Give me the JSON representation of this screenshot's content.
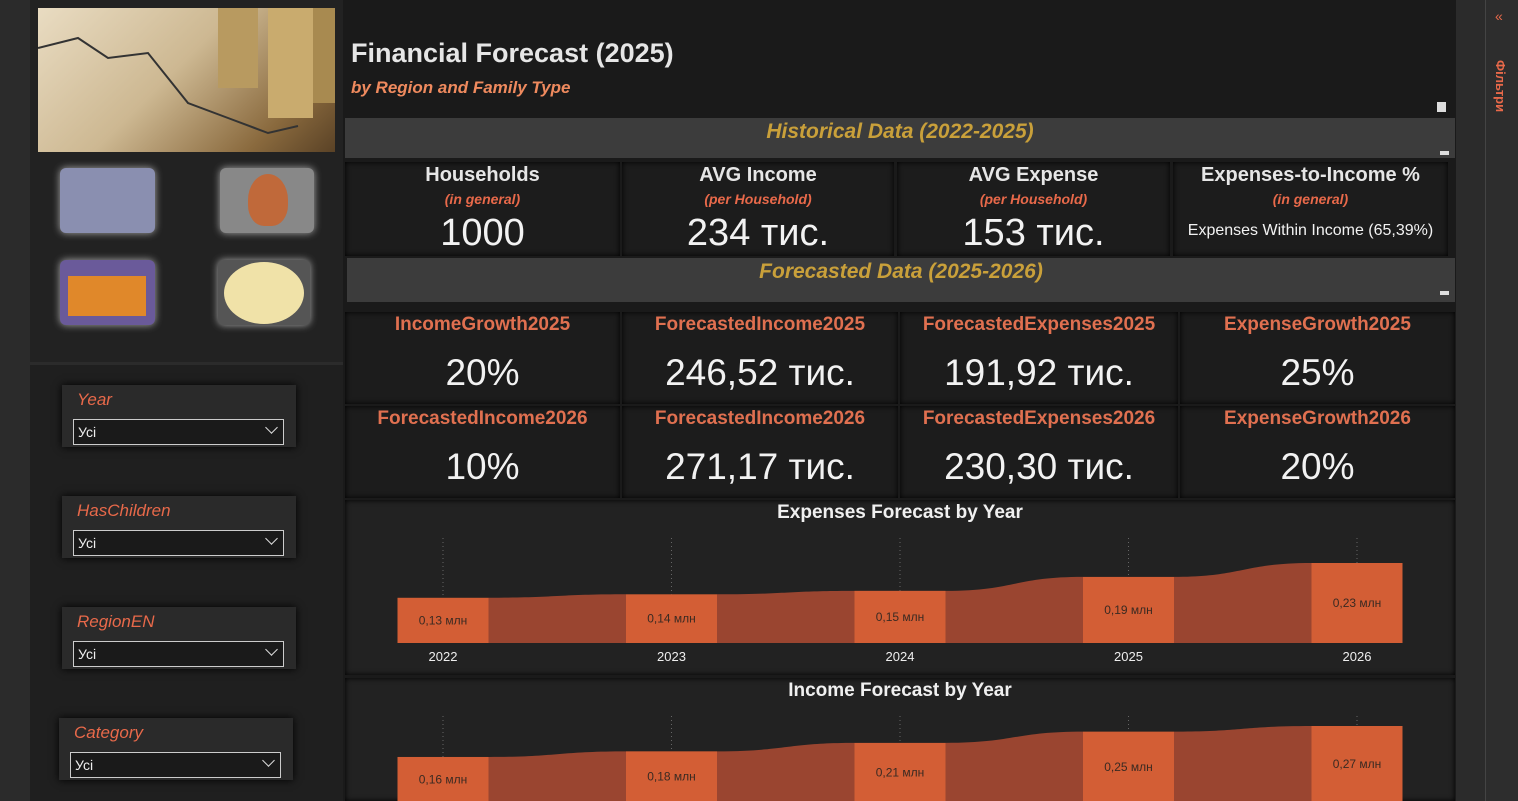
{
  "header": {
    "title": "Financial Forecast (2025)",
    "subtitle": "by Region and Family Type"
  },
  "historical": {
    "title": "Historical Data (2022-2025)",
    "cards": [
      {
        "title": "Households",
        "subtitle": "(in general)",
        "value": "1000"
      },
      {
        "title": "AVG Income",
        "subtitle": "(per Household)",
        "value": "234 тис."
      },
      {
        "title": "AVG Expense",
        "subtitle": "(per Household)",
        "value": "153 тис."
      },
      {
        "title": "Expenses-to-Income %",
        "subtitle": "(in general)",
        "value": "Expenses Within Income (65,39%)"
      }
    ]
  },
  "forecast": {
    "title": "Forecasted Data (2025-2026)",
    "cards": [
      {
        "title": "IncomeGrowth2025",
        "value": "20%"
      },
      {
        "title": "ForecastedIncome2025",
        "value": "246,52 тис."
      },
      {
        "title": "ForecastedExpenses2025",
        "value": "191,92 тис."
      },
      {
        "title": "ExpenseGrowth2025",
        "value": "25%"
      },
      {
        "title": "ForecastedIncome2026",
        "value": "10%"
      },
      {
        "title": "ForecastedIncome2026",
        "value": "271,17 тис."
      },
      {
        "title": "ForecastedExpenses2026",
        "value": "230,30 тис."
      },
      {
        "title": "ExpenseGrowth2026",
        "value": "20%"
      }
    ]
  },
  "filters": [
    {
      "label": "Year",
      "value": "Усі"
    },
    {
      "label": "HasChildren",
      "value": "Усі"
    },
    {
      "label": "RegionEN",
      "value": "Усі"
    },
    {
      "label": "Category",
      "value": "Усі"
    }
  ],
  "filter_pane": {
    "title": "Фільтри"
  },
  "chart_data": [
    {
      "type": "ribbon",
      "title": "Expenses Forecast by Year",
      "categories": [
        "2022",
        "2023",
        "2024",
        "2025",
        "2026"
      ],
      "values": [
        0.13,
        0.14,
        0.15,
        0.19,
        0.23
      ],
      "value_labels": [
        "0,13 млн",
        "0,14 млн",
        "0,15 млн",
        "0,19 млн",
        "0,23 млн"
      ],
      "color": "#d35e35",
      "ribbon_color": "#9a4530"
    },
    {
      "type": "ribbon",
      "title": "Income Forecast by Year",
      "values": [
        0.16,
        0.18,
        0.21,
        0.25,
        0.27
      ],
      "value_labels": [
        "0,16 млн",
        "0,18 млн",
        "0,21 млн",
        "0,25 млн",
        "0,27 млн"
      ],
      "color": "#d35e35",
      "ribbon_color": "#9a4530"
    }
  ]
}
